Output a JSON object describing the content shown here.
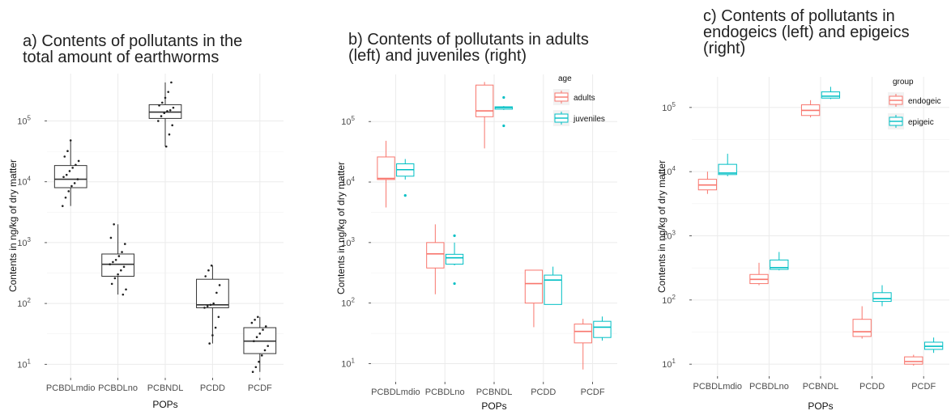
{
  "colors": {
    "adults": "#f8766d",
    "juveniles": "#00bfc4",
    "grid": "#ebebeb",
    "neutral": "#333333"
  },
  "chart_data": [
    {
      "type": "box",
      "title": [
        "a) Contents of pollutants in the",
        "total amount of earthworms"
      ],
      "xlabel": "POPs",
      "ylabel": "Contents in ng/kg of dry matter",
      "yscale": "log10",
      "ylim": [
        6,
        600000
      ],
      "yticks": [
        {
          "value": 10,
          "base": "10",
          "exp": "1"
        },
        {
          "value": 100,
          "base": "10",
          "exp": "2"
        },
        {
          "value": 1000,
          "base": "10",
          "exp": "3"
        },
        {
          "value": 10000,
          "base": "10",
          "exp": "4"
        },
        {
          "value": 100000,
          "base": "10",
          "exp": "5"
        }
      ],
      "categories": [
        "PCBDLmdio",
        "PCBDLno",
        "PCBNDL",
        "PCDD",
        "PCDF"
      ],
      "series": [
        {
          "color": "#333333",
          "boxes": [
            {
              "min": 4000,
              "q1": 8000,
              "median": 11000,
              "q3": 18500,
              "max": 48000
            },
            {
              "min": 140,
              "q1": 280,
              "median": 440,
              "q3": 650,
              "max": 2000
            },
            {
              "min": 38000,
              "q1": 110000,
              "median": 140000,
              "q3": 185000,
              "max": 430000
            },
            {
              "min": 22,
              "q1": 85,
              "median": 95,
              "q3": 250,
              "max": 420
            },
            {
              "min": 7.5,
              "q1": 15,
              "median": 24,
              "q3": 40,
              "max": 60
            }
          ],
          "points": [
            [
              4000,
              5500,
              7000,
              8500,
              9500,
              11000,
              12000,
              13000,
              15000,
              17000,
              19000,
              22000,
              26000,
              32000,
              48000
            ],
            [
              140,
              170,
              210,
              260,
              300,
              350,
              400,
              440,
              480,
              520,
              600,
              700,
              950,
              1200,
              2000
            ],
            [
              38000,
              60000,
              85000,
              100000,
              120000,
              135000,
              145000,
              150000,
              165000,
              180000,
              200000,
              240000,
              300000,
              430000
            ],
            [
              22,
              30,
              40,
              60,
              85,
              90,
              95,
              100,
              150,
              200,
              280,
              350,
              420
            ],
            [
              7.5,
              9,
              11,
              14,
              17,
              20,
              24,
              28,
              32,
              37,
              42,
              48,
              54,
              60
            ]
          ]
        }
      ]
    },
    {
      "type": "box",
      "title": [
        "b) Contents of pollutants in adults",
        "(left) and juveniles (right)"
      ],
      "xlabel": "POPs",
      "ylabel": "Contents in ng/kg of dry matter",
      "yscale": "log10",
      "ylim": [
        5,
        600000
      ],
      "yticks": [
        {
          "value": 10,
          "base": "10",
          "exp": "1"
        },
        {
          "value": 100,
          "base": "10",
          "exp": "2"
        },
        {
          "value": 1000,
          "base": "10",
          "exp": "3"
        },
        {
          "value": 10000,
          "base": "10",
          "exp": "4"
        },
        {
          "value": 100000,
          "base": "10",
          "exp": "5"
        }
      ],
      "categories": [
        "PCBDLmdio",
        "PCBDLno",
        "PCBNDL",
        "PCDD",
        "PCDF"
      ],
      "legend": {
        "title": "age",
        "position": "top-right",
        "items": [
          "adults",
          "juveniles"
        ]
      },
      "series": [
        {
          "name": "adults",
          "color": "#f8766d",
          "boxes": [
            {
              "min": 3800,
              "q1": 11000,
              "median": 11500,
              "q3": 26000,
              "max": 48000
            },
            {
              "min": 140,
              "q1": 380,
              "median": 650,
              "q3": 1000,
              "max": 2000
            },
            {
              "min": 36000,
              "q1": 120000,
              "median": 150000,
              "q3": 400000,
              "max": 450000
            },
            {
              "min": 40,
              "q1": 100,
              "median": 210,
              "q3": 350,
              "max": 350
            },
            {
              "min": 8,
              "q1": 22,
              "median": 34,
              "q3": 45,
              "max": 55
            }
          ],
          "outliers": [
            [],
            [],
            [],
            [],
            []
          ]
        },
        {
          "name": "juveniles",
          "color": "#00bfc4",
          "boxes": [
            {
              "min": 11000,
              "q1": 12500,
              "median": 16000,
              "q3": 20000,
              "max": 24000
            },
            {
              "min": 420,
              "q1": 440,
              "median": 560,
              "q3": 640,
              "max": 1000
            },
            {
              "min": 155000,
              "q1": 160000,
              "median": 170000,
              "q3": 175000,
              "max": 180000
            },
            {
              "min": 95,
              "q1": 95,
              "median": 240,
              "q3": 290,
              "max": 400
            },
            {
              "min": 24,
              "q1": 27,
              "median": 40,
              "q3": 50,
              "max": 60
            }
          ],
          "outliers": [
            [
              6000
            ],
            [
              1300,
              210
            ],
            [
              250000,
              85000
            ],
            [],
            []
          ]
        }
      ]
    },
    {
      "type": "box",
      "title": [
        "c) Contents of pollutants in",
        "endogeics (left) and epigeics",
        "(right)"
      ],
      "xlabel": "POPs",
      "ylabel": "Contents in ng/kg of dry matter",
      "yscale": "log10",
      "ylim": [
        6.5,
        300000
      ],
      "yticks": [
        {
          "value": 10,
          "base": "10",
          "exp": "1"
        },
        {
          "value": 100,
          "base": "10",
          "exp": "2"
        },
        {
          "value": 1000,
          "base": "10",
          "exp": "3"
        },
        {
          "value": 10000,
          "base": "10",
          "exp": "4"
        },
        {
          "value": 100000,
          "base": "10",
          "exp": "5"
        }
      ],
      "categories": [
        "PCBDLmdio",
        "PCBDLno",
        "PCBNDL",
        "PCDD",
        "PCDF"
      ],
      "legend": {
        "title": "group",
        "position": "top-right",
        "items": [
          "endogeic",
          "epigeic"
        ]
      },
      "series": [
        {
          "name": "endogeic",
          "color": "#f8766d",
          "boxes": [
            {
              "min": 4500,
              "q1": 5200,
              "median": 6200,
              "q3": 7600,
              "max": 10000
            },
            {
              "min": 170,
              "q1": 180,
              "median": 210,
              "q3": 250,
              "max": 380
            },
            {
              "min": 70000,
              "q1": 75000,
              "median": 90000,
              "q3": 110000,
              "max": 130000
            },
            {
              "min": 25,
              "q1": 27,
              "median": 32,
              "q3": 50,
              "max": 80
            },
            {
              "min": 9.5,
              "q1": 10,
              "median": 11,
              "q3": 13,
              "max": 14
            }
          ],
          "outliers": [
            [],
            [],
            [],
            [],
            []
          ]
        },
        {
          "name": "epigeic",
          "color": "#00bfc4",
          "boxes": [
            {
              "min": 8500,
              "q1": 9000,
              "median": 9500,
              "q3": 13000,
              "max": 19000
            },
            {
              "min": 290,
              "q1": 300,
              "median": 320,
              "q3": 420,
              "max": 560
            },
            {
              "min": 135000,
              "q1": 140000,
              "median": 150000,
              "q3": 175000,
              "max": 210000
            },
            {
              "min": 80,
              "q1": 95,
              "median": 105,
              "q3": 130,
              "max": 170
            },
            {
              "min": 15,
              "q1": 17,
              "median": 19,
              "q3": 22,
              "max": 26
            }
          ],
          "outliers": [
            [],
            [],
            [],
            [],
            []
          ]
        }
      ]
    }
  ]
}
